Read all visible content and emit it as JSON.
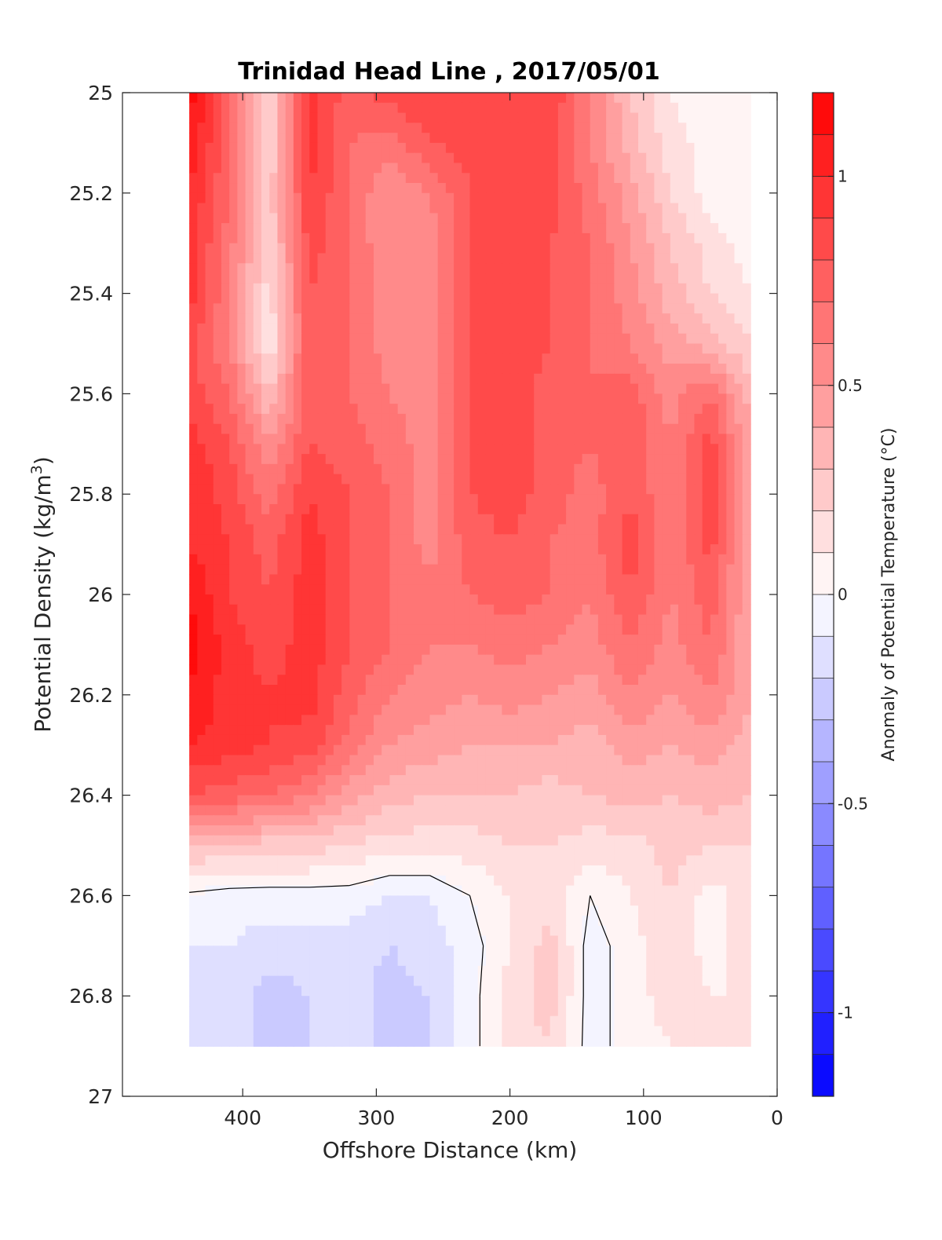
{
  "chart_data": {
    "type": "heatmap",
    "title": "Trinidad Head Line , 2017/05/01",
    "xlabel": "Offshore Distance (km)",
    "ylabel": "Potential Density (kg/m³)",
    "ylabel_base": "Potential Density (kg/m",
    "ylabel_sup": "3",
    "ylabel_end": ")",
    "xlim": [
      490,
      0
    ],
    "ylim": [
      25,
      27
    ],
    "x_reversed": true,
    "y_reversed": true,
    "xticks": [
      {
        "value": 400,
        "label": "400"
      },
      {
        "value": 300,
        "label": "300"
      },
      {
        "value": 200,
        "label": "200"
      },
      {
        "value": 100,
        "label": "100"
      },
      {
        "value": 0,
        "label": "0"
      }
    ],
    "yticks": [
      {
        "value": 25,
        "label": "25"
      },
      {
        "value": 25.2,
        "label": "25.2"
      },
      {
        "value": 25.4,
        "label": "25.4"
      },
      {
        "value": 25.6,
        "label": "25.6"
      },
      {
        "value": 25.8,
        "label": "25.8"
      },
      {
        "value": 26,
        "label": "26"
      },
      {
        "value": 26.2,
        "label": "26.2"
      },
      {
        "value": 26.4,
        "label": "26.4"
      },
      {
        "value": 26.6,
        "label": "26.6"
      },
      {
        "value": 26.8,
        "label": "26.8"
      },
      {
        "value": 27,
        "label": "27"
      }
    ],
    "grid": false,
    "x": [
      440,
      410,
      380,
      350,
      320,
      290,
      260,
      230,
      200,
      170,
      140,
      110,
      80,
      50,
      20
    ],
    "y": [
      25.0,
      25.1,
      25.2,
      25.3,
      25.4,
      25.5,
      25.6,
      25.7,
      25.8,
      25.9,
      26.0,
      26.1,
      26.2,
      26.3,
      26.4,
      26.5,
      26.6,
      26.7,
      26.8,
      26.9
    ],
    "z": [
      [
        1.15,
        0.75,
        0.2,
        0.95,
        0.75,
        0.85,
        0.9,
        0.85,
        0.9,
        0.9,
        0.6,
        0.3,
        0.1,
        0.0,
        0.0
      ],
      [
        1.1,
        0.7,
        0.2,
        0.95,
        0.7,
        0.65,
        0.8,
        0.85,
        0.9,
        0.85,
        0.6,
        0.35,
        0.15,
        0.05,
        0.0
      ],
      [
        1.0,
        0.7,
        0.25,
        0.9,
        0.7,
        0.5,
        0.6,
        0.8,
        0.9,
        0.85,
        0.65,
        0.45,
        0.2,
        0.05,
        0.0
      ],
      [
        0.95,
        0.65,
        0.2,
        0.85,
        0.7,
        0.5,
        0.55,
        0.8,
        0.9,
        0.8,
        0.7,
        0.5,
        0.3,
        0.15,
        0.05
      ],
      [
        0.95,
        0.6,
        0.15,
        0.8,
        0.7,
        0.55,
        0.55,
        0.8,
        0.9,
        0.8,
        0.7,
        0.55,
        0.35,
        0.2,
        0.1
      ],
      [
        0.85,
        0.6,
        0.1,
        0.8,
        0.7,
        0.55,
        0.55,
        0.8,
        0.9,
        0.8,
        0.7,
        0.6,
        0.45,
        0.35,
        0.2
      ],
      [
        0.85,
        0.7,
        0.3,
        0.8,
        0.7,
        0.6,
        0.55,
        0.8,
        0.85,
        0.75,
        0.7,
        0.75,
        0.55,
        0.7,
        0.35
      ],
      [
        0.95,
        0.8,
        0.5,
        0.8,
        0.75,
        0.65,
        0.55,
        0.8,
        0.85,
        0.75,
        0.7,
        0.8,
        0.6,
        0.85,
        0.4
      ],
      [
        1.0,
        0.85,
        0.65,
        0.9,
        0.8,
        0.7,
        0.55,
        0.8,
        0.85,
        0.75,
        0.65,
        0.8,
        0.6,
        0.85,
        0.4
      ],
      [
        1.0,
        0.9,
        0.75,
        0.95,
        0.8,
        0.7,
        0.55,
        0.75,
        0.8,
        0.7,
        0.65,
        0.85,
        0.6,
        0.85,
        0.4
      ],
      [
        1.1,
        0.9,
        0.8,
        0.95,
        0.8,
        0.7,
        0.65,
        0.7,
        0.75,
        0.7,
        0.6,
        0.8,
        0.6,
        0.75,
        0.4
      ],
      [
        1.15,
        0.95,
        0.85,
        0.95,
        0.8,
        0.7,
        0.6,
        0.6,
        0.65,
        0.6,
        0.55,
        0.7,
        0.55,
        0.7,
        0.4
      ],
      [
        1.1,
        0.95,
        0.9,
        0.95,
        0.75,
        0.6,
        0.55,
        0.5,
        0.55,
        0.5,
        0.45,
        0.6,
        0.5,
        0.6,
        0.4
      ],
      [
        1.0,
        0.95,
        0.9,
        0.85,
        0.65,
        0.5,
        0.45,
        0.4,
        0.4,
        0.4,
        0.35,
        0.45,
        0.4,
        0.45,
        0.35
      ],
      [
        0.8,
        0.75,
        0.7,
        0.6,
        0.45,
        0.35,
        0.3,
        0.3,
        0.3,
        0.25,
        0.3,
        0.35,
        0.3,
        0.35,
        0.3
      ],
      [
        0.3,
        0.3,
        0.25,
        0.25,
        0.2,
        0.15,
        0.15,
        0.15,
        0.2,
        0.2,
        0.15,
        0.15,
        0.25,
        0.2,
        0.2
      ],
      [
        -0.02,
        -0.05,
        -0.05,
        -0.05,
        -0.05,
        -0.1,
        -0.1,
        0.0,
        0.1,
        0.15,
        0.0,
        0.1,
        0.2,
        0.05,
        0.15
      ],
      [
        -0.1,
        -0.1,
        -0.15,
        -0.15,
        -0.15,
        -0.2,
        -0.15,
        -0.05,
        0.1,
        0.25,
        -0.05,
        0.05,
        0.2,
        0.05,
        0.15
      ],
      [
        -0.15,
        -0.15,
        -0.25,
        -0.2,
        -0.15,
        -0.25,
        -0.2,
        -0.05,
        0.15,
        0.25,
        -0.05,
        0.05,
        0.15,
        0.1,
        0.1
      ],
      [
        -0.1,
        -0.15,
        -0.25,
        -0.2,
        -0.15,
        -0.25,
        -0.2,
        -0.05,
        0.15,
        0.2,
        -0.05,
        0.05,
        0.1,
        0.1,
        0.1
      ]
    ],
    "colorbar": {
      "label": "Anomaly of Potential Temperature (°C)",
      "range": [
        -1.2,
        1.2
      ],
      "step": 0.1,
      "ticks": [
        {
          "value": 1,
          "label": "1"
        },
        {
          "value": 0.5,
          "label": "0.5"
        },
        {
          "value": 0,
          "label": "0"
        },
        {
          "value": -0.5,
          "label": "-0.5"
        },
        {
          "value": -1,
          "label": "-1"
        }
      ],
      "colormap": "blue-white-red",
      "min_color": "#0000ff",
      "mid_color": "#ffffff",
      "max_color": "#ff0000"
    },
    "zero_contour_color": "#000000"
  }
}
